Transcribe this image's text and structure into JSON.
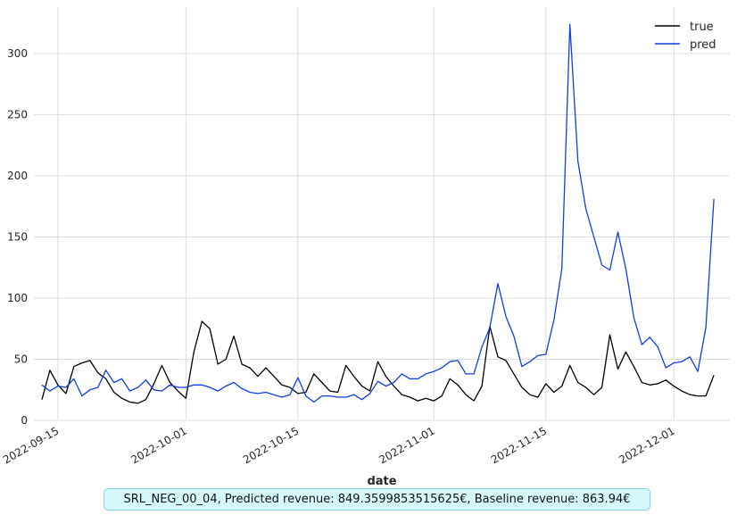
{
  "chart_data": {
    "type": "line",
    "xlabel": "date",
    "ylabel": "",
    "title": "",
    "ylim": [
      0,
      338
    ],
    "xlim": [
      "2022-09-12",
      "2022-12-08"
    ],
    "y_ticks": [
      0,
      50,
      100,
      150,
      200,
      250,
      300
    ],
    "x_ticks": [
      "2022-09-15",
      "2022-10-01",
      "2022-10-15",
      "2022-11-01",
      "2022-11-15",
      "2022-12-01"
    ],
    "grid": true,
    "legend_position": "top-right",
    "x_start": "2022-09-13",
    "series": [
      {
        "name": "true",
        "color": "#000000",
        "values": [
          17,
          41,
          29,
          22,
          44,
          47,
          49,
          39,
          34,
          23,
          18,
          15,
          14,
          17,
          30,
          45,
          31,
          24,
          18,
          56,
          81,
          75,
          46,
          50,
          69,
          46,
          43,
          36,
          43,
          36,
          29,
          27,
          22,
          23,
          38,
          31,
          24,
          23,
          45,
          36,
          28,
          24,
          48,
          36,
          28,
          21,
          19,
          16,
          18,
          16,
          20,
          34,
          29,
          21,
          16,
          28,
          77,
          52,
          49,
          38,
          27,
          21,
          19,
          30,
          23,
          28,
          45,
          31,
          27,
          21,
          27,
          70,
          42,
          56,
          44,
          31,
          29,
          30,
          33,
          28,
          24,
          21,
          20,
          20,
          37
        ]
      },
      {
        "name": "pred",
        "color": "#0f3de8",
        "values": [
          29,
          24,
          28,
          27,
          34,
          20,
          25,
          27,
          41,
          31,
          34,
          24,
          27,
          33,
          25,
          24,
          29,
          27,
          27,
          29,
          29,
          27,
          24,
          28,
          31,
          26,
          23,
          22,
          23,
          21,
          19,
          21,
          35,
          20,
          15,
          20,
          20,
          19,
          19,
          21,
          17,
          22,
          32,
          28,
          31,
          38,
          34,
          34,
          38,
          40,
          43,
          48,
          49,
          38,
          38,
          60,
          76,
          112,
          85,
          69,
          44,
          48,
          53,
          54,
          82,
          124,
          324,
          212,
          173,
          150,
          127,
          123,
          154,
          124,
          84,
          62,
          68,
          60,
          43,
          47,
          48,
          52,
          40,
          76,
          181
        ]
      }
    ]
  },
  "caption": "SRL_NEG_00_04, Predicted revenue: 849.3599853515625€, Baseline revenue: 863.94€"
}
